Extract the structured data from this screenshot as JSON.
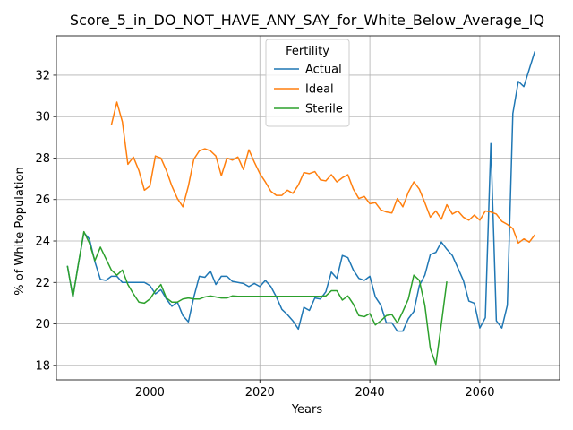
{
  "chart_data": {
    "type": "line",
    "title": "Score_5_in_DO_NOT_HAVE_ANY_SAY_for_White_Below_Average_IQ",
    "xlabel": "Years",
    "ylabel": "% of White Population",
    "xlim": [
      1983,
      2074.5
    ],
    "ylim": [
      17.3,
      33.9
    ],
    "xticks": [
      2000,
      2020,
      2040,
      2060
    ],
    "yticks": [
      18,
      20,
      22,
      24,
      26,
      28,
      30,
      32
    ],
    "grid": true,
    "legend": {
      "title": "Fertility",
      "placement": "upper center"
    },
    "series": [
      {
        "name": "Actual",
        "color": "#1f77b4",
        "x": [
          1985,
          1986,
          1987,
          1988,
          1989,
          1990,
          1991,
          1992,
          1993,
          1994,
          1995,
          1996,
          1997,
          1998,
          1999,
          2000,
          2001,
          2002,
          2003,
          2004,
          2005,
          2006,
          2007,
          2008,
          2009,
          2010,
          2011,
          2012,
          2013,
          2014,
          2015,
          2016,
          2017,
          2018,
          2019,
          2020,
          2021,
          2022,
          2023,
          2024,
          2025,
          2026,
          2027,
          2028,
          2029,
          2030,
          2031,
          2032,
          2033,
          2034,
          2035,
          2036,
          2037,
          2038,
          2039,
          2040,
          2041,
          2042,
          2043,
          2044,
          2045,
          2046,
          2047,
          2048,
          2049,
          2050,
          2051,
          2052,
          2053,
          2054,
          2055,
          2056,
          2057,
          2058,
          2059,
          2060,
          2061,
          2062,
          2063,
          2064,
          2065,
          2066,
          2067,
          2068,
          2069,
          2070
        ],
        "values": [
          22.8,
          21.3,
          22.9,
          24.4,
          24.1,
          23.0,
          22.15,
          22.1,
          22.3,
          22.3,
          22.0,
          22.0,
          22.0,
          22.0,
          22.0,
          21.85,
          21.45,
          21.65,
          21.2,
          20.85,
          21.05,
          20.4,
          20.1,
          21.3,
          22.3,
          22.25,
          22.55,
          21.9,
          22.3,
          22.3,
          22.05,
          22.0,
          21.95,
          21.8,
          21.95,
          21.8,
          22.1,
          21.8,
          21.3,
          20.7,
          20.45,
          20.15,
          19.75,
          20.8,
          20.65,
          21.25,
          21.2,
          21.55,
          22.5,
          22.2,
          23.3,
          23.2,
          22.6,
          22.2,
          22.1,
          22.3,
          21.3,
          20.9,
          20.05,
          20.05,
          19.65,
          19.65,
          20.25,
          20.6,
          21.85,
          22.35,
          23.35,
          23.45,
          23.95,
          23.6,
          23.3,
          22.7,
          22.1,
          21.1,
          21.0,
          19.8,
          20.3,
          28.7,
          20.15,
          19.8,
          20.9,
          30.15,
          31.7,
          31.45,
          32.3,
          33.15
        ]
      },
      {
        "name": "Ideal",
        "color": "#ff7f0e",
        "x": [
          1993,
          1994,
          1995,
          1996,
          1997,
          1998,
          1999,
          2000,
          2001,
          2002,
          2003,
          2004,
          2005,
          2006,
          2007,
          2008,
          2009,
          2010,
          2011,
          2012,
          2013,
          2014,
          2015,
          2016,
          2017,
          2018,
          2019,
          2020,
          2021,
          2022,
          2023,
          2024,
          2025,
          2026,
          2027,
          2028,
          2029,
          2030,
          2031,
          2032,
          2033,
          2034,
          2035,
          2036,
          2037,
          2038,
          2039,
          2040,
          2041,
          2042,
          2043,
          2044,
          2045,
          2046,
          2047,
          2048,
          2049,
          2050,
          2051,
          2052,
          2053,
          2054,
          2055,
          2056,
          2057,
          2058,
          2059,
          2060,
          2061,
          2062,
          2063,
          2064,
          2065,
          2066,
          2067,
          2068,
          2069,
          2070
        ],
        "values": [
          29.6,
          30.7,
          29.75,
          27.7,
          28.05,
          27.4,
          26.45,
          26.65,
          28.1,
          28.0,
          27.4,
          26.65,
          26.05,
          25.65,
          26.65,
          27.95,
          28.35,
          28.45,
          28.35,
          28.1,
          27.15,
          28.0,
          27.9,
          28.05,
          27.45,
          28.4,
          27.8,
          27.25,
          26.85,
          26.4,
          26.2,
          26.2,
          26.45,
          26.3,
          26.7,
          27.3,
          27.25,
          27.35,
          26.95,
          26.9,
          27.2,
          26.85,
          27.05,
          27.2,
          26.5,
          26.05,
          26.15,
          25.8,
          25.85,
          25.5,
          25.4,
          25.35,
          26.05,
          25.65,
          26.35,
          26.85,
          26.5,
          25.85,
          25.15,
          25.45,
          25.05,
          25.75,
          25.3,
          25.45,
          25.15,
          25.0,
          25.25,
          25.0,
          25.45,
          25.4,
          25.3,
          24.95,
          24.8,
          24.6,
          23.9,
          24.1,
          23.95,
          24.3
        ]
      },
      {
        "name": "Sterile",
        "color": "#2ca02c",
        "x": [
          1985,
          1986,
          1987,
          1988,
          1989,
          1990,
          1991,
          1992,
          1993,
          1994,
          1995,
          1996,
          1997,
          1998,
          1999,
          2000,
          2001,
          2002,
          2003,
          2004,
          2005,
          2006,
          2007,
          2008,
          2009,
          2010,
          2011,
          2012,
          2013,
          2014,
          2015,
          2016,
          2017,
          2018,
          2019,
          2020,
          2021,
          2022,
          2023,
          2024,
          2025,
          2026,
          2027,
          2028,
          2029,
          2030,
          2031,
          2032,
          2033,
          2034,
          2035,
          2036,
          2037,
          2038,
          2039,
          2040,
          2041,
          2042,
          2043,
          2044,
          2045,
          2046,
          2047,
          2048,
          2049,
          2050,
          2051,
          2052,
          2053,
          2054
        ],
        "values": [
          22.8,
          21.3,
          22.9,
          24.45,
          23.9,
          23.05,
          23.7,
          23.15,
          22.6,
          22.35,
          22.6,
          21.9,
          21.45,
          21.05,
          21.0,
          21.2,
          21.6,
          21.9,
          21.25,
          21.05,
          21.05,
          21.2,
          21.25,
          21.2,
          21.2,
          21.3,
          21.35,
          21.3,
          21.25,
          21.25,
          21.35,
          21.33,
          21.33,
          21.33,
          21.33,
          21.33,
          21.33,
          21.33,
          21.33,
          21.33,
          21.33,
          21.33,
          21.33,
          21.33,
          21.33,
          21.33,
          21.33,
          21.35,
          21.6,
          21.6,
          21.15,
          21.35,
          20.95,
          20.4,
          20.35,
          20.5,
          19.95,
          20.15,
          20.4,
          20.45,
          20.05,
          20.6,
          21.2,
          22.35,
          22.1,
          20.9,
          18.8,
          18.05,
          20.0,
          22.05
        ]
      }
    ]
  }
}
